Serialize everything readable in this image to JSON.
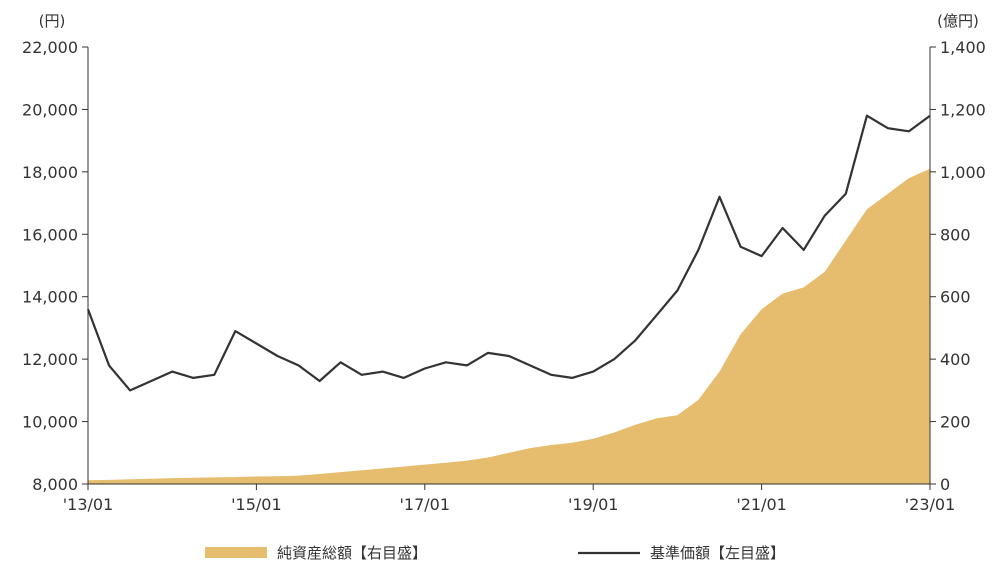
{
  "chart_data": {
    "type": "line",
    "x_labels": [
      "'13/01",
      "'15/01",
      "'17/01",
      "'19/01",
      "'21/01",
      "'23/01"
    ],
    "x": [
      "2013-01",
      "2013-04",
      "2013-07",
      "2013-10",
      "2014-01",
      "2014-04",
      "2014-07",
      "2014-10",
      "2015-01",
      "2015-04",
      "2015-07",
      "2015-10",
      "2016-01",
      "2016-04",
      "2016-07",
      "2016-10",
      "2017-01",
      "2017-04",
      "2017-07",
      "2017-10",
      "2018-01",
      "2018-04",
      "2018-07",
      "2018-10",
      "2019-01",
      "2019-04",
      "2019-07",
      "2019-10",
      "2020-01",
      "2020-04",
      "2020-07",
      "2020-10",
      "2021-01",
      "2021-04",
      "2021-07",
      "2021-10",
      "2022-01",
      "2022-04",
      "2022-07",
      "2022-10",
      "2023-01"
    ],
    "left_axis": {
      "unit": "(円)",
      "ylim": [
        8000,
        22000
      ],
      "ticks": [
        "8,000",
        "10,000",
        "12,000",
        "14,000",
        "16,000",
        "18,000",
        "20,000",
        "22,000"
      ]
    },
    "right_axis": {
      "unit": "(億円)",
      "ylim": [
        0,
        1400
      ],
      "ticks": [
        "0",
        "200",
        "400",
        "600",
        "800",
        "1,000",
        "1,200",
        "1,400"
      ]
    },
    "series": [
      {
        "name": "純資産総額【右目盛】",
        "type": "area",
        "axis": "right",
        "color": "#E6BD6E",
        "values": [
          12,
          13,
          15,
          17,
          19,
          20,
          21,
          22,
          24,
          25,
          27,
          32,
          38,
          44,
          50,
          56,
          62,
          68,
          75,
          85,
          100,
          115,
          125,
          132,
          145,
          165,
          190,
          210,
          220,
          270,
          360,
          480,
          560,
          610,
          630,
          680,
          780,
          880,
          930,
          980,
          1010
        ]
      },
      {
        "name": "基準価額【左目盛】",
        "type": "line",
        "axis": "left",
        "color": "#333333",
        "values": [
          13600,
          11800,
          11000,
          11300,
          11600,
          11400,
          11500,
          12900,
          12500,
          12100,
          11800,
          11300,
          11900,
          11500,
          11600,
          11400,
          11700,
          11900,
          11800,
          12200,
          12100,
          11800,
          11500,
          11400,
          11600,
          12000,
          12600,
          13400,
          14200,
          15500,
          17200,
          15600,
          15300,
          16200,
          15500,
          16600,
          17300,
          19800,
          19400,
          19300,
          19800
        ]
      }
    ],
    "legend": {
      "placement": "bottom",
      "entries": [
        "純資産総額【右目盛】",
        "基準価額【左目盛】"
      ]
    },
    "grid": false
  }
}
